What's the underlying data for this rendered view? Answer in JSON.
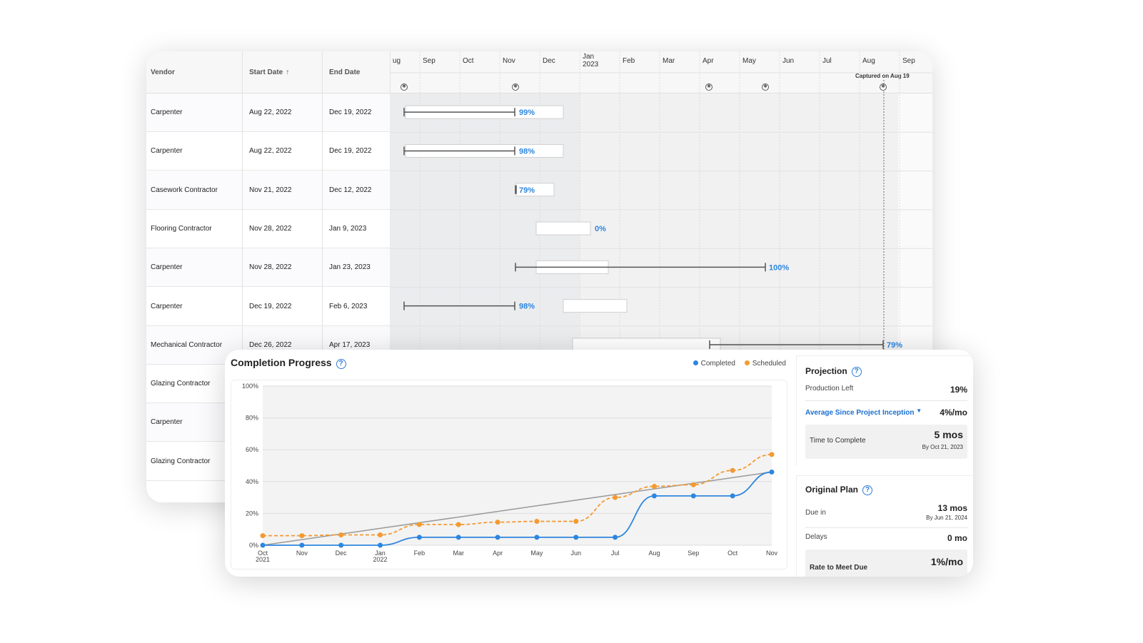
{
  "gantt": {
    "columns": {
      "vendor": "Vendor",
      "start": "Start Date",
      "start_sort": "↑",
      "end": "End Date"
    },
    "months": [
      "ug",
      "Sep",
      "Oct",
      "Nov",
      "Dec",
      "Jan\n2023",
      "Feb",
      "Mar",
      "Apr",
      "May",
      "Jun",
      "Jul",
      "Aug",
      "Sep"
    ],
    "captured": "Captured on Aug 19",
    "rows": [
      {
        "vendor": "Carpenter",
        "start": "Aug 22, 2022",
        "end": "Dec 19, 2022",
        "pct": "99%"
      },
      {
        "vendor": "Carpenter",
        "start": "Aug 22, 2022",
        "end": "Dec 19, 2022",
        "pct": "98%"
      },
      {
        "vendor": "Casework Contractor",
        "start": "Nov 21, 2022",
        "end": "Dec 12, 2022",
        "pct": "79%"
      },
      {
        "vendor": "Flooring Contractor",
        "start": "Nov 28, 2022",
        "end": "Jan 9, 2023",
        "pct": "0%"
      },
      {
        "vendor": "Carpenter",
        "start": "Nov 28, 2022",
        "end": "Jan 23, 2023",
        "pct": "100%"
      },
      {
        "vendor": "Carpenter",
        "start": "Dec 19, 2022",
        "end": "Feb 6, 2023",
        "pct": "98%"
      },
      {
        "vendor": "Mechanical Contractor",
        "start": "Dec 26, 2022",
        "end": "Apr 17, 2023",
        "pct": "79%"
      },
      {
        "vendor": "Glazing Contractor",
        "start": "",
        "end": "",
        "pct": ""
      },
      {
        "vendor": "Carpenter",
        "start": "",
        "end": "",
        "pct": ""
      },
      {
        "vendor": "Glazing Contractor",
        "start": "",
        "end": "",
        "pct": ""
      }
    ]
  },
  "progress": {
    "title": "Completion Progress",
    "legend": {
      "completed": "Completed",
      "scheduled": "Scheduled"
    },
    "colors": {
      "completed": "#2e86de",
      "scheduled": "#f39a33",
      "trend": "#999999"
    }
  },
  "chart_data": {
    "type": "line",
    "x": [
      "Oct\n2021",
      "Nov",
      "Dec",
      "Jan\n2022",
      "Feb",
      "Mar",
      "Apr",
      "May",
      "Jun",
      "Jul",
      "Aug",
      "Sep",
      "Oct",
      "Nov"
    ],
    "y_ticks": [
      "0%",
      "20%",
      "40%",
      "60%",
      "80%",
      "100%"
    ],
    "ylim": [
      0,
      100
    ],
    "grid": true,
    "legend_position": "top-right",
    "series": [
      {
        "name": "Completed",
        "values": [
          0,
          0,
          0,
          0,
          5,
          5,
          5,
          5,
          5,
          5,
          31,
          31,
          31,
          46
        ]
      },
      {
        "name": "Scheduled",
        "values": [
          6,
          6,
          6.5,
          6.5,
          13,
          13,
          14.5,
          15,
          15,
          30,
          37,
          38,
          47,
          57
        ]
      }
    ],
    "trend": {
      "values_start": 0,
      "values_end": 46
    }
  },
  "projection": {
    "title": "Projection",
    "production_left_label": "Production Left",
    "production_left": "19%",
    "avg_label": "Average Since Project Inception",
    "avg_value": "4%/mo",
    "ttc_label": "Time to Complete",
    "ttc_value": "5 mos",
    "ttc_sub": "By Oct 21, 2023"
  },
  "original_plan": {
    "title": "Original Plan",
    "due_label": "Due in",
    "due_value": "13 mos",
    "due_sub": "By Jun 21, 2024",
    "delays_label": "Delays",
    "delays_value": "0 mo",
    "rate_label": "Rate to Meet Due",
    "rate_value": "1%/mo"
  }
}
